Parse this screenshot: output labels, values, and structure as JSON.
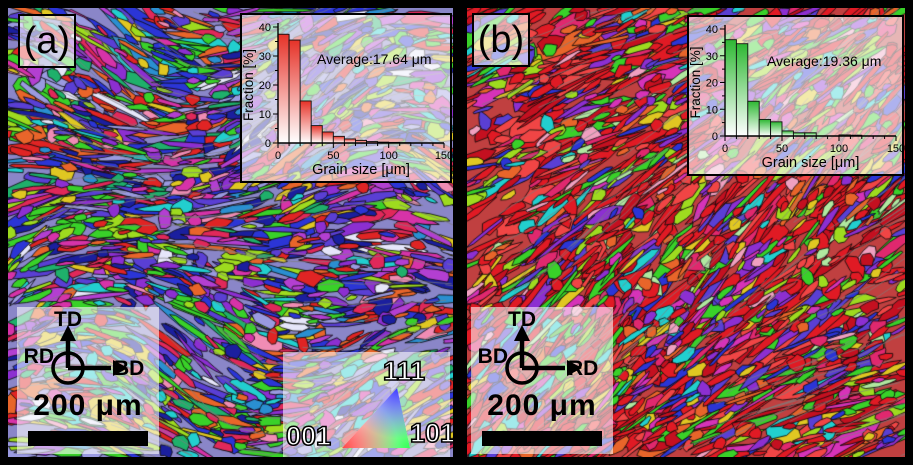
{
  "figure": {
    "panels": [
      {
        "label": "(a)",
        "scale_bar_text": "200 μm",
        "orientation_axes": {
          "up": "TD",
          "left": "RD",
          "right": "BD"
        },
        "texture": {
          "mode": "swirl",
          "base_angle_deg": 0,
          "bg": "#8a86c8",
          "seed": 7,
          "palette": [
            {
              "c": "#2b35d6",
              "w": 10
            },
            {
              "c": "#1b1f9e",
              "w": 6
            },
            {
              "c": "#5a3fd4",
              "w": 7
            },
            {
              "c": "#8c2fd1",
              "w": 7
            },
            {
              "c": "#b33fd1",
              "w": 5
            },
            {
              "c": "#d633a8",
              "w": 5
            },
            {
              "c": "#e0285a",
              "w": 6
            },
            {
              "c": "#e02424",
              "w": 9
            },
            {
              "c": "#e8652a",
              "w": 5
            },
            {
              "c": "#e0c722",
              "w": 5
            },
            {
              "c": "#9edb1f",
              "w": 6
            },
            {
              "c": "#39d129",
              "w": 9
            },
            {
              "c": "#1fb06b",
              "w": 4
            },
            {
              "c": "#22cfcf",
              "w": 5
            },
            {
              "c": "#2a8fd1",
              "w": 4
            },
            {
              "c": "#f08cb4",
              "w": 3
            },
            {
              "c": "#9a9ae0",
              "w": 4
            },
            {
              "c": "#e6e6fa",
              "w": 2
            }
          ]
        }
      },
      {
        "label": "(b)",
        "scale_bar_text": "200 μm",
        "orientation_axes": {
          "up": "TD",
          "left": "BD",
          "right": "RD"
        },
        "texture": {
          "mode": "diagonal",
          "base_angle_deg": -33,
          "bg": "#c04040",
          "seed": 23,
          "palette": [
            {
              "c": "#e01a24",
              "w": 22
            },
            {
              "c": "#c41020",
              "w": 10
            },
            {
              "c": "#f04545",
              "w": 8
            },
            {
              "c": "#e0286e",
              "w": 5
            },
            {
              "c": "#d633b8",
              "w": 4
            },
            {
              "c": "#8c2fd1",
              "w": 5
            },
            {
              "c": "#5a3fd4",
              "w": 4
            },
            {
              "c": "#2b35d6",
              "w": 4
            },
            {
              "c": "#22cfcf",
              "w": 3
            },
            {
              "c": "#39d129",
              "w": 9
            },
            {
              "c": "#9edb1f",
              "w": 5
            },
            {
              "c": "#e0c722",
              "w": 4
            },
            {
              "c": "#e8652a",
              "w": 5
            },
            {
              "c": "#f0a0c0",
              "w": 2
            },
            {
              "c": "#b0e8a0",
              "w": 2
            }
          ]
        }
      }
    ],
    "ipf_legend": {
      "top_label": "111",
      "bottom_left_label": "001",
      "bottom_right_label": "101",
      "top_color": "#3c3cff",
      "bottom_left_color": "#ff4646",
      "bottom_right_color": "#33ff55",
      "center_color": "#ffffff"
    }
  },
  "chart_data": [
    {
      "type": "bar",
      "panel": "a",
      "title": "",
      "xlabel": "Grain size [μm]",
      "ylabel": "Fraction [%]",
      "annotation": "Average:17.64 μm",
      "bin_width_um": 10,
      "values": [
        37.5,
        35.5,
        14.5,
        6.0,
        3.8,
        2.3,
        1.4,
        0.9,
        0.5,
        0.3,
        0.2,
        0.1,
        0,
        0,
        0
      ],
      "xlim": [
        0,
        150
      ],
      "ylim": [
        0,
        40
      ],
      "xticks": [
        0,
        50,
        100,
        150
      ],
      "yticks": [
        0,
        10,
        20,
        30,
        40
      ],
      "bar_top_color": "#e63228",
      "bar_bottom_color": "#ffffff",
      "grid": false,
      "legend": "none"
    },
    {
      "type": "bar",
      "panel": "b",
      "title": "",
      "xlabel": "Grain size [μm]",
      "ylabel": "Fraction [%]",
      "annotation": "Average:19.36 μm",
      "bin_width_um": 10,
      "values": [
        36.0,
        34.5,
        13.0,
        6.2,
        5.3,
        1.9,
        1.2,
        1.2,
        0,
        0,
        0.4,
        0.3,
        0,
        0,
        0
      ],
      "xlim": [
        0,
        150
      ],
      "ylim": [
        0,
        40
      ],
      "xticks": [
        0,
        50,
        100,
        150
      ],
      "yticks": [
        0,
        10,
        20,
        30,
        40
      ],
      "bar_top_color": "#2eb833",
      "bar_bottom_color": "#ffffff",
      "grid": false,
      "legend": "none"
    }
  ]
}
